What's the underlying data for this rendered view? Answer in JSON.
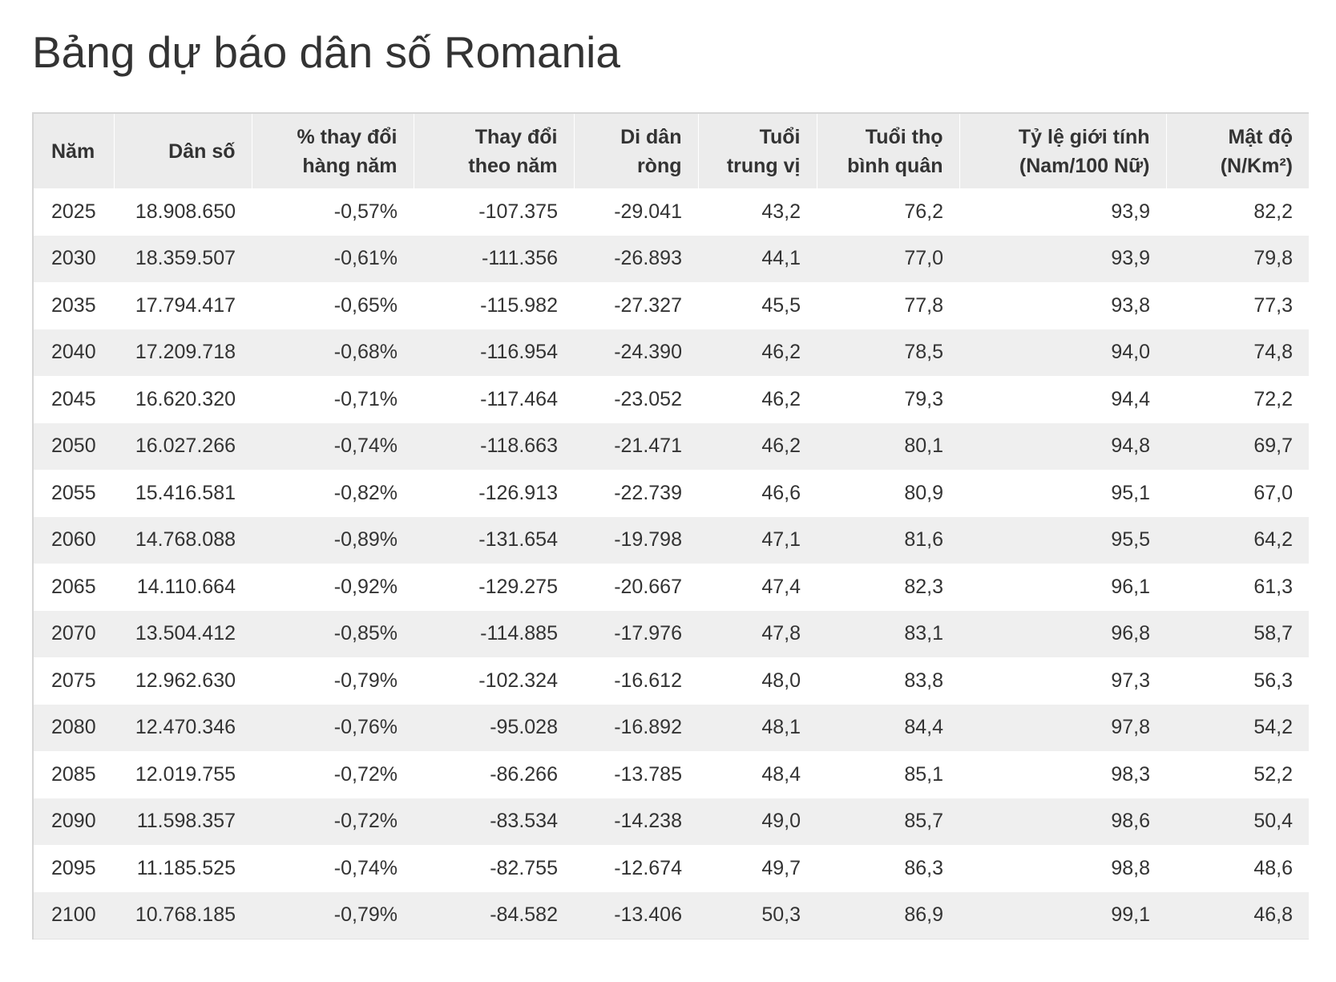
{
  "title": "Bảng dự báo dân số Romania",
  "table": {
    "headers": [
      [
        "Năm",
        ""
      ],
      [
        "Dân số",
        ""
      ],
      [
        "% thay đổi",
        "hàng năm"
      ],
      [
        "Thay đổi",
        "theo năm"
      ],
      [
        "Di dân",
        "ròng"
      ],
      [
        "Tuổi",
        "trung vị"
      ],
      [
        "Tuổi thọ",
        "bình quân"
      ],
      [
        "Tỷ lệ giới tính",
        "(Nam/100 Nữ)"
      ],
      [
        "Mật độ",
        "(N/Km²)"
      ]
    ],
    "rows": [
      [
        "2025",
        "18.908.650",
        "-0,57%",
        "-107.375",
        "-29.041",
        "43,2",
        "76,2",
        "93,9",
        "82,2"
      ],
      [
        "2030",
        "18.359.507",
        "-0,61%",
        "-111.356",
        "-26.893",
        "44,1",
        "77,0",
        "93,9",
        "79,8"
      ],
      [
        "2035",
        "17.794.417",
        "-0,65%",
        "-115.982",
        "-27.327",
        "45,5",
        "77,8",
        "93,8",
        "77,3"
      ],
      [
        "2040",
        "17.209.718",
        "-0,68%",
        "-116.954",
        "-24.390",
        "46,2",
        "78,5",
        "94,0",
        "74,8"
      ],
      [
        "2045",
        "16.620.320",
        "-0,71%",
        "-117.464",
        "-23.052",
        "46,2",
        "79,3",
        "94,4",
        "72,2"
      ],
      [
        "2050",
        "16.027.266",
        "-0,74%",
        "-118.663",
        "-21.471",
        "46,2",
        "80,1",
        "94,8",
        "69,7"
      ],
      [
        "2055",
        "15.416.581",
        "-0,82%",
        "-126.913",
        "-22.739",
        "46,6",
        "80,9",
        "95,1",
        "67,0"
      ],
      [
        "2060",
        "14.768.088",
        "-0,89%",
        "-131.654",
        "-19.798",
        "47,1",
        "81,6",
        "95,5",
        "64,2"
      ],
      [
        "2065",
        "14.110.664",
        "-0,92%",
        "-129.275",
        "-20.667",
        "47,4",
        "82,3",
        "96,1",
        "61,3"
      ],
      [
        "2070",
        "13.504.412",
        "-0,85%",
        "-114.885",
        "-17.976",
        "47,8",
        "83,1",
        "96,8",
        "58,7"
      ],
      [
        "2075",
        "12.962.630",
        "-0,79%",
        "-102.324",
        "-16.612",
        "48,0",
        "83,8",
        "97,3",
        "56,3"
      ],
      [
        "2080",
        "12.470.346",
        "-0,76%",
        "-95.028",
        "-16.892",
        "48,1",
        "84,4",
        "97,8",
        "54,2"
      ],
      [
        "2085",
        "12.019.755",
        "-0,72%",
        "-86.266",
        "-13.785",
        "48,4",
        "85,1",
        "98,3",
        "52,2"
      ],
      [
        "2090",
        "11.598.357",
        "-0,72%",
        "-83.534",
        "-14.238",
        "49,0",
        "85,7",
        "98,6",
        "50,4"
      ],
      [
        "2095",
        "11.185.525",
        "-0,74%",
        "-82.755",
        "-12.674",
        "49,7",
        "86,3",
        "98,8",
        "48,6"
      ],
      [
        "2100",
        "10.768.185",
        "-0,79%",
        "-84.582",
        "-13.406",
        "50,3",
        "86,9",
        "99,1",
        "46,8"
      ]
    ]
  }
}
